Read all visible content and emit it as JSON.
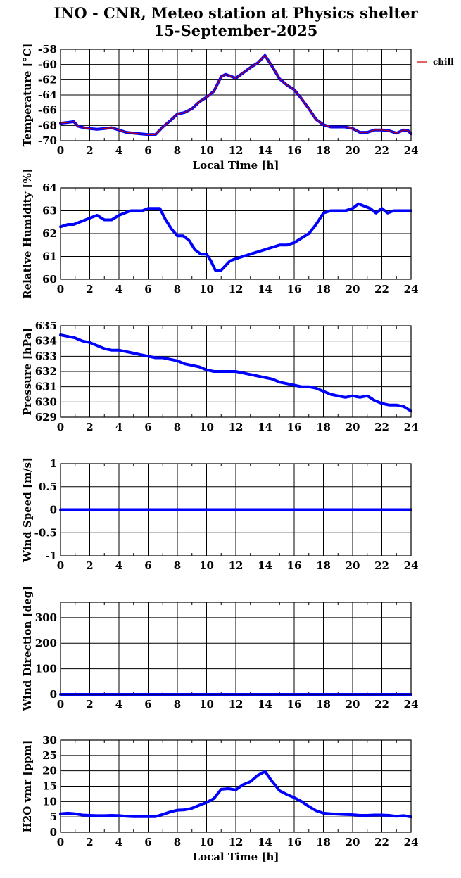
{
  "title": {
    "line1": "INO - CNR, Meteo station at Physics shelter",
    "line2": "15-September-2025"
  },
  "colors": {
    "series": "#0000ff",
    "overlay": "#c00000",
    "axes": "#000000"
  },
  "chart_data": [
    {
      "type": "line",
      "ylabel": "Temperature [°C]",
      "xlabel": "Local Time [h]",
      "xlim": [
        0,
        24
      ],
      "ylim": [
        -70,
        -58
      ],
      "x_ticks": [
        0,
        2,
        4,
        6,
        8,
        10,
        12,
        14,
        16,
        18,
        20,
        22,
        24
      ],
      "y_ticks": [
        -70,
        -68,
        -66,
        -64,
        -62,
        -60,
        -58
      ],
      "grid": true,
      "legend": {
        "position": "right",
        "entries": [
          "chill"
        ]
      },
      "series": [
        {
          "color": "#0000ff",
          "x": [
            0,
            0.5,
            0.9,
            1.2,
            1.6,
            2.0,
            2.5,
            3.0,
            3.5,
            4.0,
            4.5,
            5.0,
            5.5,
            6.0,
            6.5,
            7.0,
            7.5,
            8.0,
            8.5,
            9.0,
            9.5,
            10.0,
            10.5,
            11.0,
            11.3,
            11.6,
            12.0,
            12.5,
            13.0,
            13.5,
            14.0,
            14.5,
            15.0,
            15.5,
            16.0,
            16.5,
            17.0,
            17.5,
            18.0,
            18.5,
            19.0,
            19.5,
            20.0,
            20.5,
            21.0,
            21.5,
            22.0,
            22.5,
            23.0,
            23.5,
            23.8,
            24.0
          ],
          "y": [
            -67.7,
            -67.6,
            -67.5,
            -68.1,
            -68.3,
            -68.4,
            -68.5,
            -68.4,
            -68.3,
            -68.6,
            -68.9,
            -69.0,
            -69.1,
            -69.2,
            -69.2,
            -68.2,
            -67.4,
            -66.5,
            -66.3,
            -65.8,
            -64.9,
            -64.3,
            -63.5,
            -61.6,
            -61.3,
            -61.5,
            -61.8,
            -61.1,
            -60.4,
            -59.8,
            -58.8,
            -60.3,
            -61.9,
            -62.7,
            -63.3,
            -64.5,
            -65.8,
            -67.2,
            -67.9,
            -68.2,
            -68.2,
            -68.2,
            -68.4,
            -68.9,
            -68.9,
            -68.6,
            -68.6,
            -68.7,
            -69.0,
            -68.6,
            -68.7,
            -69.1
          ]
        },
        {
          "color": "#c00000",
          "x": [
            0,
            0.5,
            0.9,
            1.2,
            1.6,
            2.0,
            2.5,
            3.0,
            3.5,
            4.0,
            4.5,
            5.0,
            5.5,
            6.0,
            6.5,
            7.0,
            7.5,
            8.0,
            8.5,
            9.0,
            9.5,
            10.0,
            10.5,
            11.0,
            11.3,
            11.6,
            12.0,
            12.5,
            13.0,
            13.5,
            14.0,
            14.5,
            15.0,
            15.5,
            16.0,
            16.5,
            17.0,
            17.5,
            18.0,
            18.5,
            19.0,
            19.5,
            20.0,
            20.5,
            21.0,
            21.5,
            22.0,
            22.5,
            23.0,
            23.5,
            23.8,
            24.0
          ],
          "y": [
            -67.7,
            -67.6,
            -67.5,
            -68.1,
            -68.3,
            -68.4,
            -68.5,
            -68.4,
            -68.3,
            -68.6,
            -68.9,
            -69.0,
            -69.1,
            -69.2,
            -69.2,
            -68.2,
            -67.4,
            -66.5,
            -66.3,
            -65.8,
            -64.9,
            -64.3,
            -63.5,
            -61.6,
            -61.3,
            -61.5,
            -61.8,
            -61.1,
            -60.4,
            -59.8,
            -58.8,
            -60.3,
            -61.9,
            -62.7,
            -63.3,
            -64.5,
            -65.8,
            -67.2,
            -67.9,
            -68.2,
            -68.2,
            -68.2,
            -68.4,
            -68.9,
            -68.9,
            -68.6,
            -68.6,
            -68.7,
            -69.0,
            -68.6,
            -68.7,
            -69.1
          ]
        }
      ]
    },
    {
      "type": "line",
      "ylabel": "Relative Humidity [%]",
      "xlim": [
        0,
        24
      ],
      "ylim": [
        60,
        64
      ],
      "x_ticks": [
        0,
        2,
        4,
        6,
        8,
        10,
        12,
        14,
        16,
        18,
        20,
        22,
        24
      ],
      "y_ticks": [
        60,
        61,
        62,
        63,
        64
      ],
      "grid": true,
      "series": [
        {
          "color": "#0000ff",
          "x": [
            0,
            0.5,
            0.9,
            1.3,
            1.7,
            2.1,
            2.5,
            3.0,
            3.5,
            4.0,
            4.4,
            4.8,
            5.2,
            5.6,
            6.0,
            6.5,
            6.8,
            7.2,
            7.6,
            8.0,
            8.4,
            8.8,
            9.2,
            9.6,
            10.0,
            10.3,
            10.6,
            11.0,
            11.3,
            11.6,
            12.0,
            12.5,
            13.0,
            13.5,
            14.0,
            14.5,
            15.0,
            15.5,
            16.0,
            16.5,
            17.0,
            17.5,
            18.0,
            18.5,
            19.0,
            19.5,
            20.0,
            20.4,
            20.8,
            21.2,
            21.6,
            22.0,
            22.4,
            22.8,
            23.2,
            23.6,
            24.0
          ],
          "y": [
            62.3,
            62.4,
            62.4,
            62.5,
            62.6,
            62.7,
            62.8,
            62.6,
            62.6,
            62.8,
            62.9,
            63.0,
            63.0,
            63.0,
            63.1,
            63.1,
            63.1,
            62.6,
            62.2,
            61.9,
            61.9,
            61.7,
            61.3,
            61.1,
            61.1,
            60.8,
            60.4,
            60.4,
            60.6,
            60.8,
            60.9,
            61.0,
            61.1,
            61.2,
            61.3,
            61.4,
            61.5,
            61.5,
            61.6,
            61.8,
            62.0,
            62.4,
            62.9,
            63.0,
            63.0,
            63.0,
            63.1,
            63.3,
            63.2,
            63.1,
            62.9,
            63.1,
            62.9,
            63.0,
            63.0,
            63.0,
            63.0
          ]
        }
      ]
    },
    {
      "type": "line",
      "ylabel": "Pressure [hPa]",
      "xlim": [
        0,
        24
      ],
      "ylim": [
        629,
        635
      ],
      "x_ticks": [
        0,
        2,
        4,
        6,
        8,
        10,
        12,
        14,
        16,
        18,
        20,
        22,
        24
      ],
      "y_ticks": [
        629,
        630,
        631,
        632,
        633,
        634,
        635
      ],
      "grid": true,
      "series": [
        {
          "color": "#0000ff",
          "x": [
            0,
            0.5,
            1.0,
            1.5,
            2.0,
            2.5,
            3.0,
            3.5,
            4.0,
            4.5,
            5.0,
            5.5,
            6.0,
            6.5,
            7.0,
            7.5,
            8.0,
            8.5,
            9.0,
            9.5,
            10.0,
            10.5,
            11.0,
            11.5,
            12.0,
            12.5,
            13.0,
            13.5,
            14.0,
            14.5,
            15.0,
            15.5,
            16.0,
            16.5,
            17.0,
            17.5,
            18.0,
            18.5,
            19.0,
            19.5,
            20.0,
            20.5,
            21.0,
            21.5,
            22.0,
            22.5,
            23.0,
            23.5,
            24.0
          ],
          "y": [
            634.4,
            634.3,
            634.2,
            634.0,
            633.9,
            633.7,
            633.5,
            633.4,
            633.4,
            633.3,
            633.2,
            633.1,
            633.0,
            632.9,
            632.9,
            632.8,
            632.7,
            632.5,
            632.4,
            632.3,
            632.1,
            632.0,
            632.0,
            632.0,
            632.0,
            631.9,
            631.8,
            631.7,
            631.6,
            631.5,
            631.3,
            631.2,
            631.1,
            631.0,
            631.0,
            630.9,
            630.7,
            630.5,
            630.4,
            630.3,
            630.4,
            630.3,
            630.4,
            630.1,
            629.9,
            629.8,
            629.8,
            629.7,
            629.4
          ]
        }
      ]
    },
    {
      "type": "line",
      "ylabel": "Wind Speed [m/s]",
      "xlim": [
        0,
        24
      ],
      "ylim": [
        -1,
        1
      ],
      "x_ticks": [
        0,
        2,
        4,
        6,
        8,
        10,
        12,
        14,
        16,
        18,
        20,
        22,
        24
      ],
      "y_ticks": [
        -1,
        -0.5,
        0,
        0.5,
        1
      ],
      "y_tick_labels": [
        "-1",
        "-0.5",
        "0",
        "0.5",
        "1"
      ],
      "grid": true,
      "series": [
        {
          "color": "#0000ff",
          "x": [
            0,
            24
          ],
          "y": [
            0,
            0
          ]
        }
      ]
    },
    {
      "type": "line",
      "ylabel": "Wind Direction [deg]",
      "xlim": [
        0,
        24
      ],
      "ylim": [
        0,
        360
      ],
      "x_ticks": [
        0,
        2,
        4,
        6,
        8,
        10,
        12,
        14,
        16,
        18,
        20,
        22,
        24
      ],
      "y_ticks": [
        0,
        100,
        200,
        300
      ],
      "grid": true,
      "series": [
        {
          "color": "#0000ff",
          "x": [
            0,
            24
          ],
          "y": [
            0,
            0
          ]
        }
      ]
    },
    {
      "type": "line",
      "ylabel": "H2O vmr [ppm]",
      "xlabel": "Local Time [h]",
      "xlim": [
        0,
        24
      ],
      "ylim": [
        0,
        30
      ],
      "x_ticks": [
        0,
        2,
        4,
        6,
        8,
        10,
        12,
        14,
        16,
        18,
        20,
        22,
        24
      ],
      "y_ticks": [
        0,
        5,
        10,
        15,
        20,
        25,
        30
      ],
      "grid": true,
      "series": [
        {
          "color": "#0000ff",
          "x": [
            0,
            0.5,
            1.0,
            1.5,
            2.0,
            2.5,
            3.0,
            3.5,
            4.0,
            4.5,
            5.0,
            5.5,
            6.0,
            6.5,
            7.0,
            7.5,
            8.0,
            8.5,
            9.0,
            9.5,
            10.0,
            10.5,
            11.0,
            11.5,
            12.0,
            12.5,
            13.0,
            13.5,
            14.0,
            14.5,
            15.0,
            15.5,
            16.0,
            16.5,
            17.0,
            17.5,
            18.0,
            18.5,
            19.0,
            19.5,
            20.0,
            20.5,
            21.0,
            21.5,
            22.0,
            22.5,
            23.0,
            23.5,
            24.0
          ],
          "y": [
            6.0,
            6.2,
            6.0,
            5.6,
            5.5,
            5.4,
            5.4,
            5.5,
            5.4,
            5.2,
            5.1,
            5.1,
            5.1,
            5.1,
            5.8,
            6.6,
            7.2,
            7.3,
            7.8,
            8.8,
            9.7,
            11.0,
            14.0,
            14.2,
            13.8,
            15.5,
            16.5,
            18.5,
            19.8,
            16.5,
            13.5,
            12.3,
            11.3,
            10.0,
            8.4,
            7.0,
            6.2,
            6.0,
            5.9,
            5.8,
            5.7,
            5.5,
            5.5,
            5.6,
            5.6,
            5.5,
            5.2,
            5.4,
            5.0
          ]
        }
      ]
    }
  ]
}
